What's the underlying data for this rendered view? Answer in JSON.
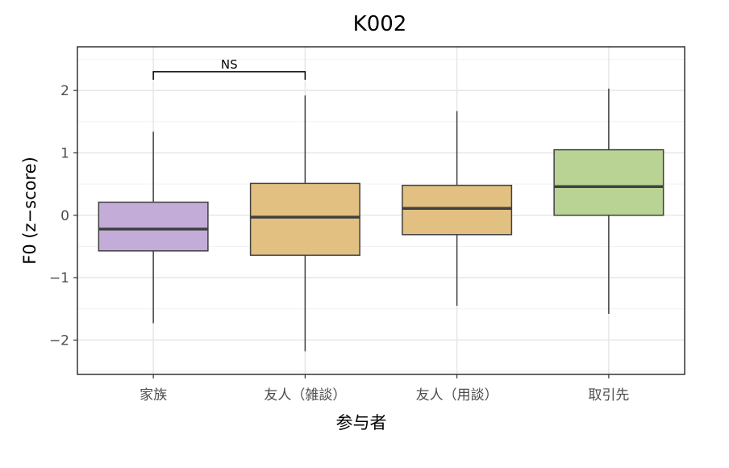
{
  "chart_data": {
    "type": "box",
    "title": "K002",
    "xlabel": "参与者",
    "ylabel": "F0 (z−score)",
    "ylim": [
      -2.55,
      2.7
    ],
    "yticks": [
      -2,
      -1,
      0,
      1,
      2
    ],
    "ytick_labels": [
      "−2",
      "−1",
      "0",
      "1",
      "2"
    ],
    "grid": true,
    "categories": [
      "家族",
      "友人（雑談）",
      "友人（用談）",
      "取引先"
    ],
    "boxes": [
      {
        "category": "家族",
        "whisker_low": -1.73,
        "q1": -0.57,
        "median": -0.22,
        "q3": 0.21,
        "whisker_high": 1.34,
        "color": "#c3acd7"
      },
      {
        "category": "友人（雑談）",
        "whisker_low": -2.18,
        "q1": -0.64,
        "median": -0.03,
        "q3": 0.51,
        "whisker_high": 1.92,
        "color": "#e2c081"
      },
      {
        "category": "友人（用談）",
        "whisker_low": -1.45,
        "q1": -0.31,
        "median": 0.11,
        "q3": 0.48,
        "whisker_high": 1.67,
        "color": "#e2c081"
      },
      {
        "category": "取引先",
        "whisker_low": -1.58,
        "q1": 0.0,
        "median": 0.46,
        "q3": 1.05,
        "whisker_high": 2.03,
        "color": "#b8d393"
      }
    ],
    "annotations": [
      {
        "label": "NS",
        "from": "家族",
        "to": "友人（雑談）",
        "y": 2.3
      }
    ]
  }
}
